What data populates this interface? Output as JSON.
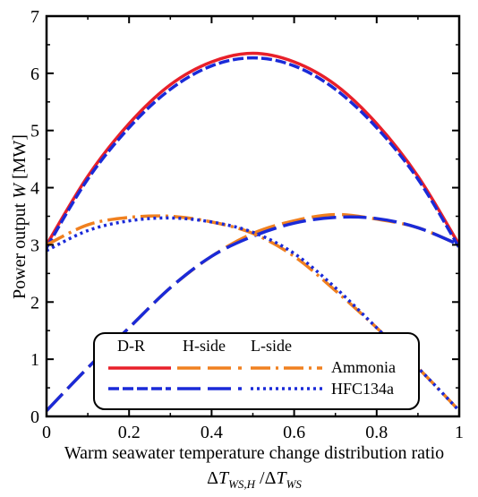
{
  "chart_data": {
    "type": "line",
    "xlabel_line1": "Warm seawater temperature change distribution ratio",
    "xlabel_line2": "ΔT_WS,H / ΔT_WS",
    "ylabel": "Power output W [MW]",
    "xlim": [
      0,
      1
    ],
    "ylim": [
      0,
      7
    ],
    "xticks": [
      "0",
      "0.2",
      "0.4",
      "0.6",
      "0.8",
      "1"
    ],
    "yticks": [
      "0",
      "1",
      "2",
      "3",
      "4",
      "5",
      "6",
      "7"
    ],
    "grid": false,
    "legend": {
      "position": "bottom-center",
      "column_headers": [
        "D-R",
        "H-side",
        "L-side"
      ],
      "row_labels": [
        "Ammonia",
        "HFC134a"
      ]
    },
    "colors": {
      "Ammonia": "#f08020",
      "HFC134a": "#1a2ad8",
      "D-R Ammonia": "#e8202a"
    },
    "series": [
      {
        "fluid": "Ammonia",
        "curve": "D-R",
        "style": "solid",
        "x": [
          0.0,
          0.1,
          0.2,
          0.3,
          0.4,
          0.5,
          0.6,
          0.7,
          0.8,
          0.9,
          1.0
        ],
        "y": [
          3.0,
          4.2,
          5.12,
          5.8,
          6.2,
          6.35,
          6.2,
          5.8,
          5.12,
          4.2,
          3.0
        ]
      },
      {
        "fluid": "HFC134a",
        "curve": "D-R",
        "style": "dashed",
        "x": [
          0.0,
          0.1,
          0.2,
          0.3,
          0.4,
          0.5,
          0.6,
          0.7,
          0.8,
          0.9,
          1.0
        ],
        "y": [
          2.95,
          4.15,
          5.05,
          5.72,
          6.13,
          6.27,
          6.13,
          5.72,
          5.05,
          4.15,
          2.95
        ]
      },
      {
        "fluid": "Ammonia",
        "curve": "H-side",
        "style": "long-dash",
        "x": [
          0.0,
          0.1,
          0.2,
          0.3,
          0.4,
          0.5,
          0.6,
          0.7,
          0.8,
          0.9,
          1.0
        ],
        "y": [
          0.1,
          0.85,
          1.55,
          2.25,
          2.8,
          3.2,
          3.42,
          3.53,
          3.45,
          3.3,
          3.0
        ]
      },
      {
        "fluid": "HFC134a",
        "curve": "H-side",
        "style": "long-dash",
        "x": [
          0.0,
          0.1,
          0.2,
          0.3,
          0.4,
          0.5,
          0.6,
          0.7,
          0.8,
          0.9,
          1.0
        ],
        "y": [
          0.1,
          0.85,
          1.55,
          2.25,
          2.8,
          3.15,
          3.38,
          3.48,
          3.46,
          3.3,
          3.0
        ]
      },
      {
        "fluid": "Ammonia",
        "curve": "L-side",
        "style": "dash-dot",
        "x": [
          0.0,
          0.1,
          0.2,
          0.3,
          0.4,
          0.5,
          0.6,
          0.7,
          0.8,
          0.9,
          1.0
        ],
        "y": [
          3.0,
          3.35,
          3.48,
          3.5,
          3.4,
          3.2,
          2.8,
          2.2,
          1.55,
          0.85,
          0.1
        ]
      },
      {
        "fluid": "HFC134a",
        "curve": "L-side",
        "style": "dotted",
        "x": [
          0.0,
          0.1,
          0.2,
          0.3,
          0.4,
          0.5,
          0.6,
          0.7,
          0.8,
          0.9,
          1.0
        ],
        "y": [
          2.9,
          3.25,
          3.42,
          3.47,
          3.4,
          3.22,
          2.85,
          2.25,
          1.55,
          0.85,
          0.1
        ]
      }
    ]
  }
}
